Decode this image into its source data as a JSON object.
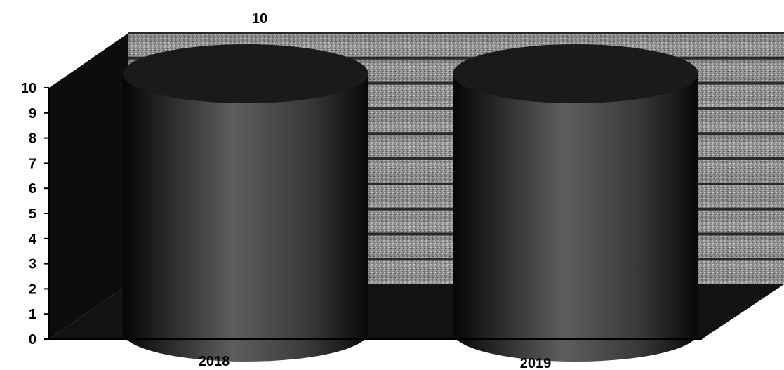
{
  "chart_data": {
    "type": "bar",
    "style": "3d-cylinder",
    "categories": [
      "2018",
      "2019"
    ],
    "values": [
      10,
      10
    ],
    "data_labels": [
      "10",
      ""
    ],
    "yticks": [
      0,
      1,
      2,
      3,
      4,
      5,
      6,
      7,
      8,
      9,
      10
    ],
    "ylim": [
      0,
      10
    ],
    "grid": true,
    "title": "",
    "xlabel": "",
    "ylabel": "",
    "colors": {
      "bar": "#1a1a1a",
      "bar_highlight": "#6a6a6a",
      "wall": "#9a9a9a",
      "wall_stripe": "#2a2a2a",
      "floor": "#141414"
    }
  }
}
